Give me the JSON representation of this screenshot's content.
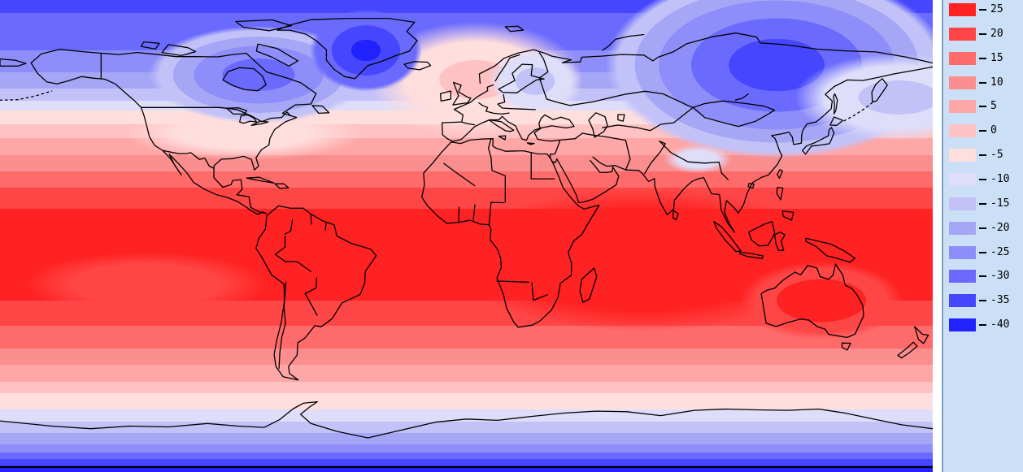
{
  "legend": {
    "position": "right",
    "background": "#cbdff6",
    "divider_color": "#7d9fc0",
    "tick_color": "#000000",
    "label_color": "#000000",
    "entries": [
      {
        "label": "25",
        "value": 25,
        "color": "#ff2222"
      },
      {
        "label": "20",
        "value": 20,
        "color": "#ff4646"
      },
      {
        "label": "15",
        "value": 15,
        "color": "#ff6a6a"
      },
      {
        "label": "10",
        "value": 10,
        "color": "#fa8e8e"
      },
      {
        "label": "5",
        "value": 5,
        "color": "#ffa6a6"
      },
      {
        "label": "0",
        "value": 0,
        "color": "#ffc2c2"
      },
      {
        "label": "-5",
        "value": -5,
        "color": "#ffdede"
      },
      {
        "label": "-10",
        "value": -10,
        "color": "#dedefa"
      },
      {
        "label": "-15",
        "value": -15,
        "color": "#c2c2f8"
      },
      {
        "label": "-20",
        "value": -20,
        "color": "#a6a6f6"
      },
      {
        "label": "-25",
        "value": -25,
        "color": "#8e8efa"
      },
      {
        "label": "-30",
        "value": -30,
        "color": "#6a6aff"
      },
      {
        "label": "-35",
        "value": -35,
        "color": "#4646ff"
      },
      {
        "label": "-40",
        "value": -40,
        "color": "#2222ff"
      }
    ]
  },
  "map": {
    "border_color": "#000000",
    "frame_color": "#000000"
  },
  "chart_data": {
    "type": "heatmap",
    "subtype": "filled-contour world temperature map with country borders",
    "title": "",
    "projection": "equirectangular, 180W-180E / 90N-90S",
    "grid": false,
    "legend_position": "right",
    "colorbar": {
      "levels": [
        25,
        20,
        15,
        10,
        5,
        0,
        -5,
        -10,
        -15,
        -20,
        -25,
        -30,
        -35,
        -40
      ],
      "colors": [
        "#ff2222",
        "#ff4646",
        "#ff6a6a",
        "#fa8e8e",
        "#ffa6a6",
        "#ffc2c2",
        "#ffdede",
        "#dedefa",
        "#c2c2f8",
        "#a6a6f6",
        "#8e8efa",
        "#6a6aff",
        "#4646ff",
        "#2222ff"
      ]
    },
    "zonal_values_estimate": [
      {
        "latitude": "90N-75N",
        "value": "-40 to -25"
      },
      {
        "latitude": "75N-60N",
        "value": "-25 to -10"
      },
      {
        "latitude": "60N-45N",
        "value": "-10 to 0"
      },
      {
        "latitude": "45N-30N",
        "value": "0 to 15"
      },
      {
        "latitude": "30N-0",
        "value": "15 to 25+"
      },
      {
        "latitude": "0-30S",
        "value": "25+ to 15"
      },
      {
        "latitude": "30S-50S",
        "value": "15 to 5"
      },
      {
        "latitude": "50S-65S",
        "value": "5 to -5"
      },
      {
        "latitude": "65S-90S",
        "value": "-5 to -40"
      }
    ],
    "regional_features_estimate": [
      {
        "region": "Greenland ice sheet",
        "value": "-35 to -40"
      },
      {
        "region": "Canadian Arctic / Hudson Bay",
        "value": "-25 to -35"
      },
      {
        "region": "Northeast Siberia",
        "value": "-30 to -40"
      },
      {
        "region": "North Atlantic near Norway",
        "value": "-5 to 0"
      },
      {
        "region": "Scandinavia / NW Russia",
        "value": "-10 to -15"
      },
      {
        "region": "Tibetan Plateau",
        "value": "-10"
      },
      {
        "region": "Tropics (Africa, S Asia, Amazon, N Australia, Indian Ocean)",
        "value": "25+"
      },
      {
        "region": "Antarctic interior",
        "value": "-40"
      }
    ]
  }
}
